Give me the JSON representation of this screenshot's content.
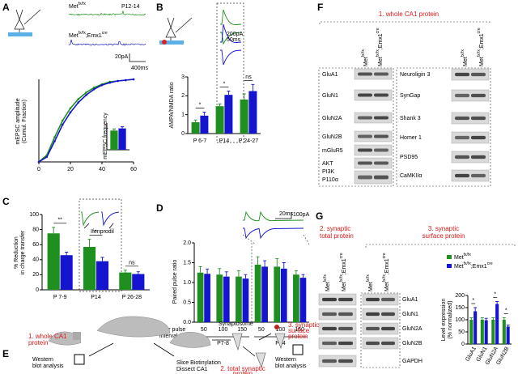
{
  "panel_labels": [
    "A",
    "B",
    "C",
    "D",
    "E",
    "F",
    "G"
  ],
  "genotypes": {
    "control": [
      "Met",
      "fx/fx"
    ],
    "mutant": [
      "Met",
      "fx/fx",
      ";Emx1",
      "cre"
    ]
  },
  "panel_a": {
    "age": "P12-14",
    "scale": [
      "20pA",
      "400ms"
    ]
  },
  "panel_b": {
    "scale": [
      "200pA",
      "50ms"
    ]
  },
  "panel_c": {
    "drug": "Ifenprodil"
  },
  "panel_d": {
    "scale": [
      "20ms",
      "100pA"
    ]
  },
  "panel_e": {
    "whole": [
      "1. whole CA1",
      "protein"
    ],
    "western1": [
      "Western",
      "blot analysis"
    ],
    "slice": [
      "Slice Biotinylation",
      "Dissect CA1"
    ],
    "synaptosome": "Synaptosome",
    "surface": [
      "3. synaptic",
      "surface",
      "protein"
    ],
    "total": [
      "2. total synaptic",
      "protein"
    ],
    "western2": [
      "Western",
      "blot analysis"
    ]
  },
  "panel_f": {
    "title": "1. whole CA1 protein",
    "left": [
      "GluA1",
      "GluN1",
      "GluN2A",
      "GluN2B",
      "mGluR5",
      "AKT",
      "PI3K",
      "P110α"
    ],
    "right": [
      "Neuroligin 3",
      "SynGap",
      "Shank 3",
      "Homer 1",
      "PSD95",
      "CaMKIIα"
    ]
  },
  "panel_g": {
    "total_title": [
      "2. synaptic",
      "total protein"
    ],
    "surface_title": [
      "3. synaptic",
      "surface protein"
    ],
    "proteins": [
      "GluA1",
      "GluN1",
      "GluN2A",
      "GluN2B",
      "GAPDH"
    ]
  },
  "chart_data": [
    {
      "type": "line",
      "x": [
        0,
        5,
        10,
        15,
        20,
        25,
        30,
        35,
        40,
        45,
        50,
        55,
        60
      ],
      "xlim": [
        0,
        60
      ],
      "xticks": [
        0,
        20,
        40,
        60
      ],
      "ylim": [
        0,
        1
      ],
      "y_label": [
        "mEPSC amplitude",
        "(Cumul. Fraction)"
      ],
      "series": [
        {
          "color": "#1f8f1f",
          "values": [
            0,
            0.08,
            0.3,
            0.5,
            0.65,
            0.76,
            0.84,
            0.9,
            0.94,
            0.97,
            0.98,
            0.99,
            1
          ]
        },
        {
          "color": "#1515d0",
          "values": [
            0,
            0.06,
            0.25,
            0.45,
            0.6,
            0.72,
            0.81,
            0.88,
            0.93,
            0.96,
            0.98,
            0.99,
            1
          ]
        }
      ]
    },
    {
      "type": "bar",
      "y_label": [
        "mEPSC frequency"
      ],
      "ylim": [
        0,
        5
      ],
      "categories": [
        null
      ],
      "series": [
        {
          "color": "#1f8f1f",
          "values": [
            3.6
          ],
          "errors": [
            0.3
          ]
        },
        {
          "color": "#1515d0",
          "values": [
            4.0
          ],
          "errors": [
            0.3
          ]
        }
      ]
    },
    {
      "type": "bar",
      "y_label": [
        "AMPA/NMDA ratio"
      ],
      "categories": [
        "P 6-7",
        "P14",
        "P 24-27"
      ],
      "ylim": [
        0,
        3
      ],
      "yticks": [
        0,
        1,
        2,
        3
      ],
      "series": [
        {
          "color": "#1f8f1f",
          "values": [
            0.6,
            1.45,
            1.8
          ],
          "errors": [
            0.12,
            0.12,
            0.3
          ]
        },
        {
          "color": "#1515d0",
          "values": [
            0.95,
            2.05,
            2.25
          ],
          "errors": [
            0.18,
            0.2,
            0.35
          ]
        }
      ],
      "annotations": [
        {
          "text": "*",
          "category": 0
        },
        {
          "text": "*",
          "category": 1
        },
        {
          "text": "ns",
          "category": 2
        }
      ]
    },
    {
      "type": "bar",
      "y_label": [
        "% Reduction",
        "in charge transfer"
      ],
      "categories": [
        "P 7-9",
        "P14",
        "P 26-28"
      ],
      "ylim": [
        0,
        100
      ],
      "yticks": [
        0,
        20,
        40,
        60,
        80,
        100
      ],
      "series": [
        {
          "color": "#1f8f1f",
          "values": [
            75,
            57,
            23
          ],
          "errors": [
            8,
            10,
            3
          ]
        },
        {
          "color": "#1515d0",
          "values": [
            46,
            38,
            21
          ],
          "errors": [
            4,
            5,
            3
          ]
        }
      ],
      "annotations": [
        {
          "text": "**",
          "category": 0
        },
        {
          "text": "*",
          "category": 1
        },
        {
          "text": "ns",
          "category": 2
        }
      ]
    },
    {
      "type": "bar",
      "y_label": [
        "Paired pulse ratio"
      ],
      "x_label": [
        "inter pulse",
        "interval (ms)"
      ],
      "categories": [
        "50",
        "100",
        "150",
        "50",
        "100",
        "150"
      ],
      "groups": [
        "P7-8",
        "P14"
      ],
      "ylim": [
        0,
        2
      ],
      "yticks": [
        {
          "value": 0,
          "label": "0.0"
        },
        0.5,
        {
          "value": 1,
          "label": "1.0"
        },
        1.5,
        {
          "value": 2,
          "label": "2.0"
        }
      ],
      "series": [
        {
          "color": "#1f8f1f",
          "values": [
            1.25,
            1.2,
            1.15,
            1.45,
            1.4,
            1.2
          ],
          "errors": [
            0.15,
            0.15,
            0.15,
            0.2,
            0.2,
            0.1
          ]
        },
        {
          "color": "#1515d0",
          "values": [
            1.22,
            1.15,
            1.1,
            1.4,
            1.35,
            1.12
          ],
          "errors": [
            0.12,
            0.12,
            0.1,
            0.15,
            0.15,
            0.08
          ]
        }
      ]
    },
    {
      "type": "bar",
      "y_label": [
        "Level expression",
        "(% normalized)"
      ],
      "categories": [
        "GluA1",
        "GluN1",
        "GluN2A",
        "GluN2B"
      ],
      "ylim": [
        0,
        200
      ],
      "yticks": [
        0,
        50,
        100,
        150,
        200
      ],
      "series": [
        {
          "color": "#1f8f1f",
          "values": [
            100,
            100,
            100,
            100
          ],
          "errors": [
            8,
            8,
            8,
            8
          ]
        },
        {
          "color": "#1515d0",
          "values": [
            135,
            98,
            165,
            72
          ],
          "errors": [
            15,
            8,
            10,
            6
          ]
        }
      ],
      "annotations": [
        {
          "text": "*",
          "category": 0
        },
        {
          "text": "*",
          "category": 2
        },
        {
          "text": "*",
          "category": 3
        }
      ]
    }
  ]
}
